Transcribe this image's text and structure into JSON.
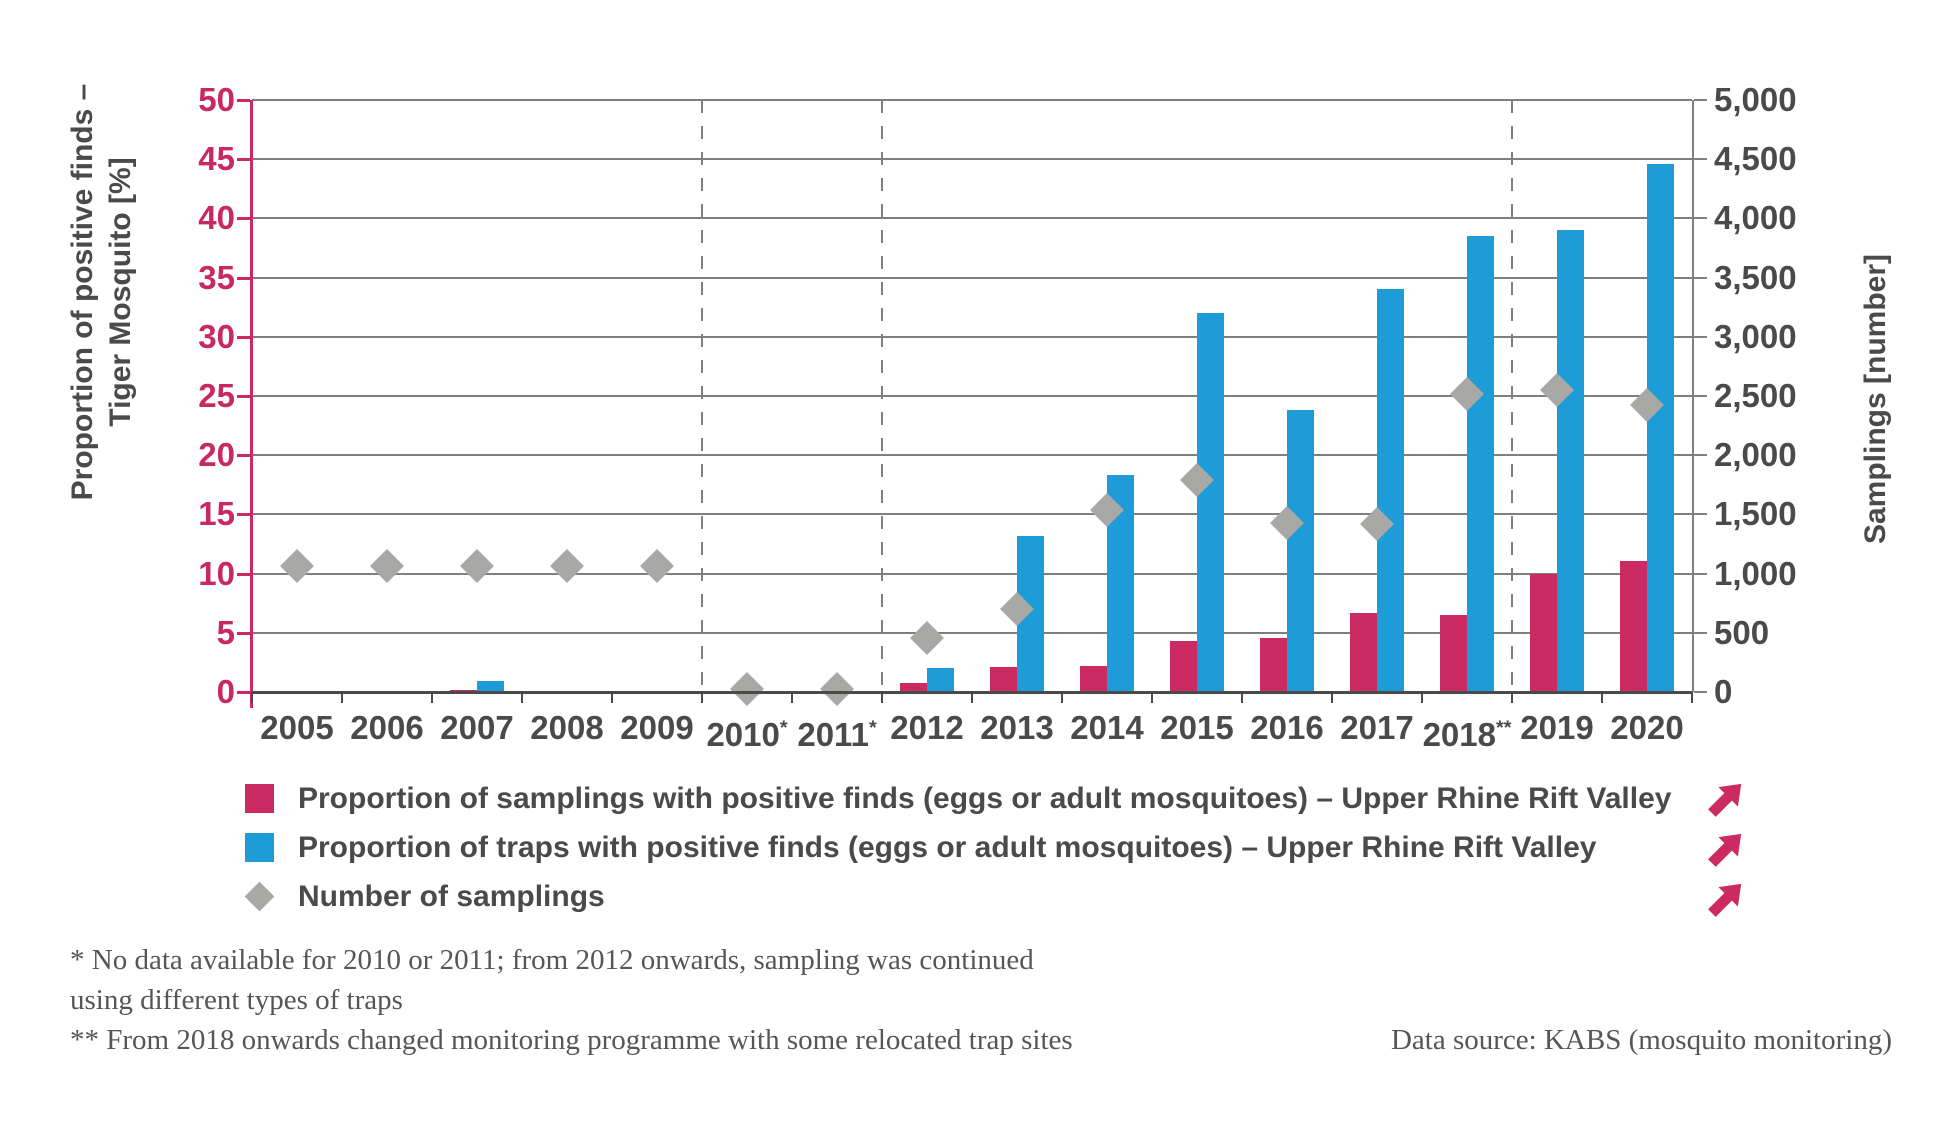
{
  "figure": {
    "left_axis_label_line1": "Proportion of positive finds –",
    "left_axis_label_line2": "Tiger Mosquito [%]",
    "right_axis_label": "Samplings [number]"
  },
  "chart_data": {
    "type": "combo-bar-scatter",
    "title": "",
    "categories": [
      {
        "year": "2005",
        "note": ""
      },
      {
        "year": "2006",
        "note": ""
      },
      {
        "year": "2007",
        "note": ""
      },
      {
        "year": "2008",
        "note": ""
      },
      {
        "year": "2009",
        "note": ""
      },
      {
        "year": "2010",
        "note": "*"
      },
      {
        "year": "2011",
        "note": "*"
      },
      {
        "year": "2012",
        "note": ""
      },
      {
        "year": "2013",
        "note": ""
      },
      {
        "year": "2014",
        "note": ""
      },
      {
        "year": "2015",
        "note": ""
      },
      {
        "year": "2016",
        "note": ""
      },
      {
        "year": "2017",
        "note": ""
      },
      {
        "year": "2018",
        "note": "**"
      },
      {
        "year": "2019",
        "note": ""
      },
      {
        "year": "2020",
        "note": ""
      }
    ],
    "left_axis": {
      "min": 0,
      "max": 50,
      "step": 5,
      "unit": "%"
    },
    "right_axis": {
      "min": 0,
      "max": 5000,
      "step": 500
    },
    "series": [
      {
        "id": "samplings-positive",
        "name": "Proportion of samplings with positive finds (eggs or adult mosquitoes) – Upper Rhine Rift Valley",
        "type": "bar",
        "axis": "left",
        "color": "#cb2a63",
        "values_pct": [
          0,
          0,
          0.1,
          0,
          0,
          null,
          null,
          0.8,
          2.1,
          2.2,
          4.3,
          4.6,
          6.7,
          6.5,
          10.0,
          11.1
        ]
      },
      {
        "id": "traps-positive",
        "name": "Proportion of traps with positive finds (eggs or adult mosquitoes) – Upper Rhine Rift Valley",
        "type": "bar",
        "axis": "left",
        "color": "#1e9cd7",
        "values_pct": [
          0,
          0,
          0.9,
          0,
          0,
          null,
          null,
          2.0,
          13.2,
          18.3,
          32.0,
          23.8,
          34.0,
          38.5,
          39.0,
          44.6
        ]
      },
      {
        "id": "number-of-samplings",
        "name": "Number of samplings",
        "type": "scatter-diamond",
        "axis": "right",
        "color": "#a8a8a6",
        "values": [
          1060,
          1060,
          1060,
          1060,
          1060,
          25,
          25,
          460,
          700,
          1540,
          1790,
          1430,
          1420,
          2520,
          2550,
          2420
        ]
      }
    ],
    "dashed_separators_after_index": [
      4,
      6,
      13
    ],
    "grid": true,
    "legend_position": "bottom-left"
  },
  "footnotes": {
    "line1": "*  No data available for 2010 or 2011; from 2012 onwards, sampling was continued",
    "line2": "using different types of traps",
    "line3": "** From 2018 onwards changed monitoring programme with some relocated trap sites"
  },
  "source": "Data source: KABS (mosquito monitoring)",
  "colors": {
    "magenta": "#cb2a63",
    "blue": "#1e9cd7",
    "diamond_gray": "#a8a8a6",
    "grid_gray": "#7f7f7d",
    "text_dark": "#4a4a48",
    "axis_tick_magenta": "#c8295e",
    "footnote_gray": "#565654"
  }
}
